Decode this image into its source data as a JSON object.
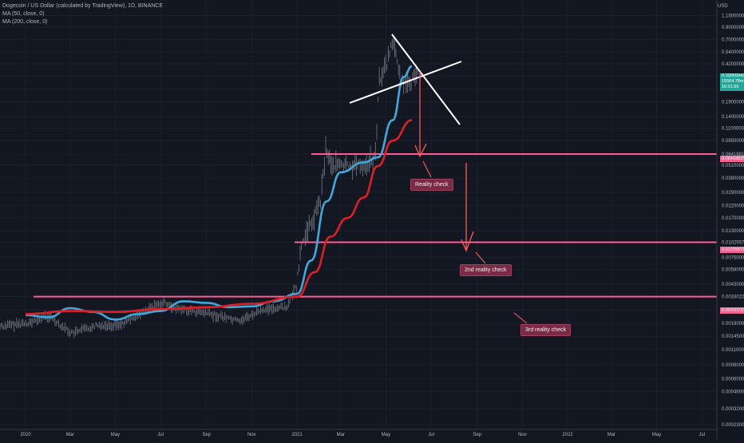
{
  "legend": {
    "symbol_line": "Dogecoin / US Dollar (calculated by TradingView), 1D, BINANCE",
    "ma50_line": "MA (50, close, 0)",
    "ma200_line": "MA (200, close, 0)"
  },
  "currency_label": "USD",
  "price_tags": {
    "last_price": "0.32665942",
    "last_volume": "15564.78m",
    "countdown": "16:01:56",
    "level1": "0.06418815",
    "level2": "0.01025577",
    "level3": "0.00330223"
  },
  "annotations": {
    "reality_check": "Reality check",
    "second_reality_check": "2nd reality check",
    "third_reality_check": "3rd reality check"
  },
  "colors": {
    "background": "#131722",
    "grid": "#1f2330",
    "ma50": "#3fa9dc",
    "ma200": "#e01e26",
    "levels": "#ff5c93",
    "arrows": "#ff5a5a",
    "trendlines": "#ffffff",
    "candles": "#8a8d96"
  },
  "chart_data": {
    "type": "line",
    "y_scale": "log",
    "y_ticks": [
      "1.15000000",
      "0.90000000",
      "0.70000000",
      "0.54000000",
      "0.42000000",
      "0.32665942",
      "0.25000000",
      "0.19000000",
      "0.14000000",
      "0.11000000",
      "0.08500000",
      "0.06418815",
      "0.05100000",
      "0.03900000",
      "0.02900000",
      "0.02200000",
      "0.01700000",
      "0.01300000",
      "0.01025577",
      "0.00750000",
      "0.00580000",
      "0.00430000",
      "0.00330223",
      "0.00250000",
      "0.00190000",
      "0.00145000",
      "0.00110000",
      "0.00080000",
      "0.00060000",
      "0.00046000",
      "0.00032000",
      "0.00023000"
    ],
    "x_ticks": [
      "2020",
      "Mar",
      "May",
      "Jul",
      "Sep",
      "Nov",
      "2021",
      "Mar",
      "May",
      "Jul",
      "Sep",
      "Nov",
      "2022",
      "Mar",
      "May",
      "Jul"
    ],
    "series": [
      {
        "name": "MA (50, close, 0)",
        "x": [
          "2020-01-01",
          "2020-02-01",
          "2020-03-01",
          "2020-04-01",
          "2020-05-01",
          "2020-06-01",
          "2020-07-01",
          "2020-08-01",
          "2020-09-01",
          "2020-10-01",
          "2020-11-01",
          "2020-12-01",
          "2021-01-01",
          "2021-01-20",
          "2021-02-10",
          "2021-03-01",
          "2021-04-01",
          "2021-04-20",
          "2021-05-10",
          "2021-05-25",
          "2021-06-05"
        ],
        "y": [
          0.00225,
          0.00215,
          0.0026,
          0.0024,
          0.00205,
          0.0023,
          0.00245,
          0.003,
          0.0029,
          0.00265,
          0.0027,
          0.003,
          0.0035,
          0.007,
          0.024,
          0.044,
          0.054,
          0.06,
          0.13,
          0.32,
          0.4
        ]
      },
      {
        "name": "MA (200, close, 0)",
        "x": [
          "2020-01-01",
          "2020-03-01",
          "2020-05-01",
          "2020-07-01",
          "2020-09-01",
          "2020-11-01",
          "2021-01-01",
          "2021-01-25",
          "2021-02-15",
          "2021-03-10",
          "2021-04-01",
          "2021-04-20",
          "2021-05-10",
          "2021-06-05"
        ],
        "y": [
          0.0023,
          0.00245,
          0.0024,
          0.00255,
          0.00265,
          0.00285,
          0.0033,
          0.0055,
          0.0115,
          0.017,
          0.026,
          0.05,
          0.085,
          0.13
        ]
      }
    ],
    "horizontal_levels": [
      0.06418815,
      0.01025577,
      0.00330223
    ]
  }
}
